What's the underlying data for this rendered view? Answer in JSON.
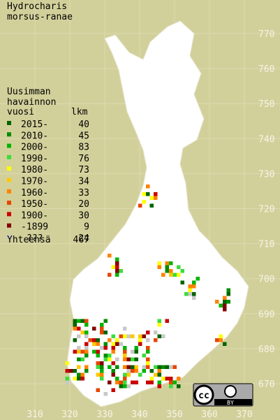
{
  "title": [
    "Hydrocharis",
    "morsus-ranae"
  ],
  "legend": {
    "header": [
      "Uusimman",
      "havainnon"
    ],
    "col_year": "vuosi",
    "col_count": "lkm",
    "rows": [
      {
        "label": "2015-",
        "count": "40",
        "color": "#006400"
      },
      {
        "label": "2010-",
        "count": "45",
        "color": "#008c00"
      },
      {
        "label": "2000-",
        "count": "83",
        "color": "#00b400"
      },
      {
        "label": "1990-",
        "count": "76",
        "color": "#3cdc3c"
      },
      {
        "label": "1980-",
        "count": "73",
        "color": "#ffff00"
      },
      {
        "label": "1970-",
        "count": "34",
        "color": "#ffc800"
      },
      {
        "label": "1960-",
        "count": "33",
        "color": "#ff8200"
      },
      {
        "label": "1950-",
        "count": "20",
        "color": "#e64600"
      },
      {
        "label": "1900-",
        "count": "30",
        "color": "#c80000"
      },
      {
        "label": "-1899",
        "count": "9",
        "color": "#820000"
      },
      {
        "label": "???",
        "count": "24",
        "color": "#c8c8c8"
      }
    ],
    "total_label": "Yhteensä",
    "total": "467"
  },
  "grid_y_labels": [
    "770",
    "760",
    "750",
    "740",
    "730",
    "720",
    "710",
    "700",
    "690",
    "680",
    "670"
  ],
  "grid_x_labels": [
    "310",
    "320",
    "330",
    "340",
    "350",
    "360",
    "370"
  ],
  "license": {
    "logo": "cc",
    "label": "BY"
  }
}
